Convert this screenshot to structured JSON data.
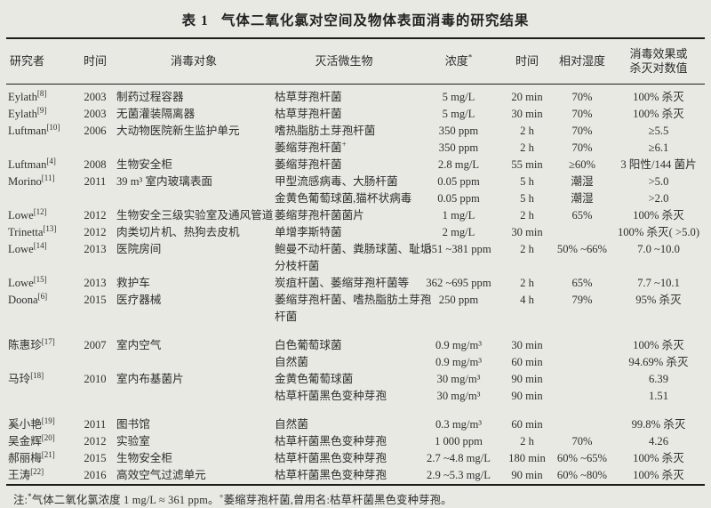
{
  "title": {
    "prefix": "表 1",
    "text": "气体二氧化氯对空间及物体表面消毒的研究结果"
  },
  "table": {
    "columns": [
      {
        "id": "researcher",
        "label": "研究者",
        "align": "al"
      },
      {
        "id": "year",
        "label": "时间",
        "align": "ac"
      },
      {
        "id": "object",
        "label": "消毒对象",
        "align": "ac"
      },
      {
        "id": "microbe",
        "label": "灭活微生物",
        "align": "ac"
      },
      {
        "id": "concentration",
        "label": "浓度",
        "sup": "*",
        "align": "ac"
      },
      {
        "id": "time",
        "label": "时间",
        "align": "ac"
      },
      {
        "id": "humidity",
        "label": "相对湿度",
        "align": "ac"
      },
      {
        "id": "effect",
        "lines": [
          "消毒效果或",
          "杀灭对数值"
        ],
        "align": "ac"
      }
    ],
    "rows": [
      {
        "researcher": "Eylath",
        "ref": "8",
        "year": "2003",
        "object": "制药过程容器",
        "microbe": "枯草芽孢杆菌",
        "concentration": "5 mg/L",
        "time": "20 min",
        "humidity": "70%",
        "effect": "100% 杀灭"
      },
      {
        "researcher": "Eylath",
        "ref": "9",
        "year": "2003",
        "object": "无菌灌装隔离器",
        "microbe": "枯草芽孢杆菌",
        "concentration": "5 mg/L",
        "time": "30 min",
        "humidity": "70%",
        "effect": "100% 杀灭"
      },
      {
        "researcher": "Luftman",
        "ref": "10",
        "year": "2006",
        "object": "大动物医院新生监护单元",
        "microbe": "嗜热脂肪土芽孢杆菌",
        "concentration": "350 ppm",
        "time": "2 h",
        "humidity": "70%",
        "effect": "≥5.5"
      },
      {
        "microbe": "萎缩芽孢杆菌",
        "microbe_sup": "+",
        "concentration": "350 ppm",
        "time": "2 h",
        "humidity": "70%",
        "effect": "≥6.1"
      },
      {
        "researcher": "Luftman",
        "ref": "4",
        "year": "2008",
        "object": "生物安全柜",
        "microbe": "萎缩芽孢杆菌",
        "concentration": "2.8 mg/L",
        "time": "55 min",
        "humidity": "≥60%",
        "effect": "3 阳性/144 菌片"
      },
      {
        "researcher": "Morino",
        "ref": "11",
        "year": "2011",
        "object": "39 m³ 室内玻璃表面",
        "microbe": "甲型流感病毒、大肠杆菌",
        "concentration": "0.05 ppm",
        "time": "5 h",
        "humidity": "潮湿",
        "effect": ">5.0"
      },
      {
        "microbe": "金黄色葡萄球菌,猫杯状病毒",
        "concentration": "0.05 ppm",
        "time": "5 h",
        "humidity": "潮湿",
        "effect": ">2.0"
      },
      {
        "researcher": "Lowe",
        "ref": "12",
        "year": "2012",
        "object": "生物安全三级实验室及通风管道",
        "microbe": "萎缩芽孢杆菌菌片",
        "concentration": "1 mg/L",
        "time": "2 h",
        "humidity": "65%",
        "effect": "100% 杀灭"
      },
      {
        "researcher": "Trinetta",
        "ref": "13",
        "year": "2012",
        "object": "肉类切片机、热狗去皮机",
        "microbe": "单增李斯特菌",
        "concentration": "2 mg/L",
        "time": "30 min",
        "humidity": "",
        "effect": "100% 杀灭( >5.0)"
      },
      {
        "researcher": "Lowe",
        "ref": "14",
        "year": "2013",
        "object": "医院房间",
        "microbe": "鲍曼不动杆菌、粪肠球菌、耻垢",
        "concentration": "351 ~381 ppm",
        "time": "2 h",
        "humidity": "50% ~66%",
        "effect": "7.0 ~10.0"
      },
      {
        "microbe": "分枝杆菌"
      },
      {
        "researcher": "Lowe",
        "ref": "15",
        "year": "2013",
        "object": "救护车",
        "microbe": "炭疽杆菌、萎缩芽孢杆菌等",
        "concentration": "362 ~695 ppm",
        "time": "2 h",
        "humidity": "65%",
        "effect": "7.7 ~10.1"
      },
      {
        "researcher": "Doona",
        "ref": "6",
        "year": "2015",
        "object": "医疗器械",
        "microbe": "萎缩芽孢杆菌、嗜热脂肪土芽孢",
        "concentration": "250 ppm",
        "time": "4 h",
        "humidity": "79%",
        "effect": "95% 杀灭"
      },
      {
        "microbe": "杆菌"
      },
      {
        "gap": true,
        "researcher": "陈惠珍",
        "ref": "17",
        "year": "2007",
        "object": "室内空气",
        "microbe": "白色葡萄球菌",
        "concentration": "0.9 mg/m³",
        "time": "30 min",
        "humidity": "",
        "effect": "100% 杀灭"
      },
      {
        "microbe": "自然菌",
        "concentration": "0.9 mg/m³",
        "time": "60 min",
        "humidity": "",
        "effect": "94.69% 杀灭"
      },
      {
        "researcher": "马玲",
        "ref": "18",
        "year": "2010",
        "object": "室内布基菌片",
        "microbe": "金黄色葡萄球菌",
        "concentration": "30 mg/m³",
        "time": "90 min",
        "humidity": "",
        "effect": "6.39"
      },
      {
        "microbe": "枯草杆菌黑色变种芽孢",
        "concentration": "30 mg/m³",
        "time": "90 min",
        "humidity": "",
        "effect": "1.51"
      },
      {
        "gap": true,
        "researcher": "奚小艳",
        "ref": "19",
        "year": "2011",
        "object": "图书馆",
        "microbe": "自然菌",
        "concentration": "0.3 mg/m³",
        "time": "60 min",
        "humidity": "",
        "effect": "99.8% 杀灭"
      },
      {
        "researcher": "吴金辉",
        "ref": "20",
        "year": "2012",
        "object": "实验室",
        "microbe": "枯草杆菌黑色变种芽孢",
        "concentration": "1 000 ppm",
        "time": "2 h",
        "humidity": "70%",
        "effect": "4.26"
      },
      {
        "researcher": "郝丽梅",
        "ref": "21",
        "year": "2015",
        "object": "生物安全柜",
        "microbe": "枯草杆菌黑色变种芽孢",
        "concentration": "2.7 ~4.8 mg/L",
        "time": "180 min",
        "humidity": "60% ~65%",
        "effect": "100% 杀灭"
      },
      {
        "researcher": "王涛",
        "ref": "22",
        "year": "2016",
        "object": "高效空气过滤单元",
        "microbe": "枯草杆菌黑色变种芽孢",
        "concentration": "2.9 ~5.3 mg/L",
        "time": "90 min",
        "humidity": "60% ~80%",
        "effect": "100% 杀灭"
      }
    ]
  },
  "footnote": {
    "prefix": "注:",
    "sup1": "*",
    "text1": "气体二氧化氯浓度 1 mg/L ≈ 361 ppm。",
    "sup2": "+",
    "text2": "萎缩芽孢杆菌,曾用名:枯草杆菌黑色变种芽孢。"
  }
}
